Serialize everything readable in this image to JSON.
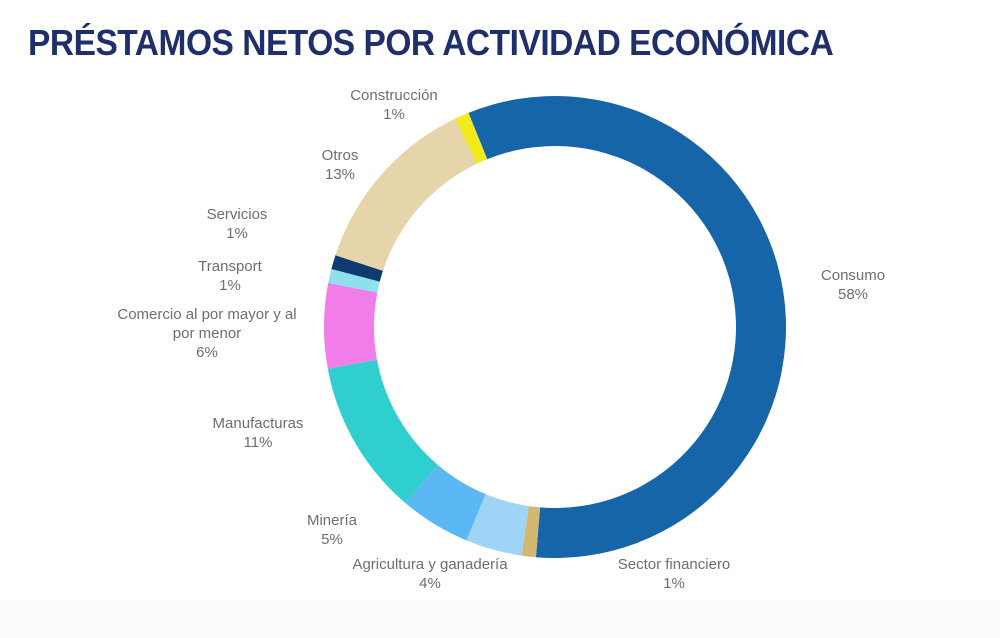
{
  "title": "PRÉSTAMOS NETOS POR ACTIVIDAD ECONÓMICA",
  "chart_data": {
    "type": "pie",
    "subtype": "donut",
    "title": "PRÉSTAMOS NETOS POR ACTIVIDAD ECONÓMICA",
    "categories": [
      "Consumo",
      "Sector financiero",
      "Agricultura y ganadería",
      "Minería",
      "Manufacturas",
      "Comercio al por mayor y al por menor",
      "Transport",
      "Servicios",
      "Otros",
      "Construcción"
    ],
    "values": [
      58,
      1,
      4,
      5,
      11,
      6,
      1,
      1,
      13,
      1
    ],
    "unit": "%",
    "colors": [
      "#1565a8",
      "#d4b872",
      "#9fd4f7",
      "#5bb8f5",
      "#2fcfcf",
      "#f07de8",
      "#8ee0ec",
      "#0e3a70",
      "#e6d5aa",
      "#f2ea1a"
    ],
    "legend": "none (data labels around ring)"
  },
  "labels": [
    {
      "name": "Consumo",
      "pct": "58%"
    },
    {
      "name": "Sector financiero",
      "pct": "1%"
    },
    {
      "name": "Agricultura y ganadería",
      "pct": "4%"
    },
    {
      "name": "Minería",
      "pct": "5%"
    },
    {
      "name": "Manufacturas",
      "pct": "11%"
    },
    {
      "name": "Comercio al por mayor y al",
      "name2": "por menor",
      "pct": "6%"
    },
    {
      "name": "Transport",
      "pct": "1%"
    },
    {
      "name": "Servicios",
      "pct": "1%"
    },
    {
      "name": "Otros",
      "pct": "13%"
    },
    {
      "name": "Construcción",
      "pct": "1%"
    }
  ]
}
